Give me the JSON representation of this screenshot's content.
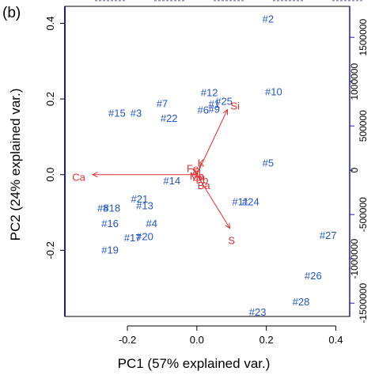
{
  "panel_label": "(b)",
  "chart_data": {
    "type": "scatter",
    "subtype": "pca-biplot",
    "xlabel": "PC1 (57% explained var.)",
    "ylabel": "PC2 (24% explained var.)",
    "xlim": [
      -0.38,
      0.44
    ],
    "ylim": [
      -0.375,
      0.445
    ],
    "x_ticks": [
      -0.2,
      0.0,
      0.2,
      0.4
    ],
    "x_tick_labels": [
      "-0.2",
      "0.0",
      "0.2",
      "0.4"
    ],
    "y_ticks": [
      -0.2,
      0.0,
      0.2,
      0.4
    ],
    "y_tick_labels": [
      "-0.2",
      "0.0",
      "0.2",
      "0.4"
    ],
    "secondary_y_ticks": [
      -1500000,
      -500000,
      500000,
      1500000
    ],
    "secondary_y_tick_labels": [
      "-1500000",
      "-500000",
      "500000",
      "1500000"
    ],
    "secondary_y_minor_ticks": [
      -1000000,
      0,
      1000000
    ],
    "secondary_y_minor_tick_labels": [
      "-1000000",
      "0",
      "1000000"
    ],
    "secondary_ylim": [
      -1650000,
      1850000
    ],
    "grid": false,
    "colors": {
      "observations": "#2255cc",
      "variables": "#e03030",
      "axis": "#1a1aa0",
      "frame": "#000000"
    },
    "observations": [
      {
        "label": "#2",
        "x": 0.205,
        "y": 0.41
      },
      {
        "label": "#10",
        "x": 0.221,
        "y": 0.218
      },
      {
        "label": "#12",
        "x": 0.036,
        "y": 0.216
      },
      {
        "label": "#25",
        "x": 0.078,
        "y": 0.193
      },
      {
        "label": "#1",
        "x": 0.05,
        "y": 0.186
      },
      {
        "label": "#9",
        "x": 0.05,
        "y": 0.172
      },
      {
        "label": "#6",
        "x": 0.018,
        "y": 0.17
      },
      {
        "label": "#7",
        "x": -0.1,
        "y": 0.187
      },
      {
        "label": "#15",
        "x": -0.23,
        "y": 0.162
      },
      {
        "label": "#3",
        "x": -0.175,
        "y": 0.162
      },
      {
        "label": "#22",
        "x": -0.08,
        "y": 0.148
      },
      {
        "label": "#5",
        "x": 0.205,
        "y": 0.03
      },
      {
        "label": "#14",
        "x": -0.072,
        "y": -0.017
      },
      {
        "label": "#21",
        "x": -0.165,
        "y": -0.065
      },
      {
        "label": "#13",
        "x": -0.15,
        "y": -0.083
      },
      {
        "label": "#18",
        "x": -0.245,
        "y": -0.089
      },
      {
        "label": "#8",
        "x": -0.27,
        "y": -0.089
      },
      {
        "label": "#24",
        "x": 0.155,
        "y": -0.073
      },
      {
        "label": "#11",
        "x": 0.125,
        "y": -0.073
      },
      {
        "label": "#16",
        "x": -0.25,
        "y": -0.13
      },
      {
        "label": "#4",
        "x": -0.13,
        "y": -0.13
      },
      {
        "label": "#17",
        "x": -0.185,
        "y": -0.168
      },
      {
        "label": "#20",
        "x": -0.15,
        "y": -0.165
      },
      {
        "label": "#19",
        "x": -0.25,
        "y": -0.2
      },
      {
        "label": "#27",
        "x": 0.378,
        "y": -0.162
      },
      {
        "label": "#26",
        "x": 0.335,
        "y": -0.268
      },
      {
        "label": "#28",
        "x": 0.3,
        "y": -0.337
      },
      {
        "label": "#23",
        "x": 0.175,
        "y": -0.365
      }
    ],
    "variables": [
      {
        "label": "Ca",
        "x": -0.3,
        "y": 0.0,
        "arrow": true,
        "label_x": -0.34,
        "label_y": -0.008
      },
      {
        "label": "Si",
        "x": 0.088,
        "y": 0.172,
        "arrow": true,
        "label_x": 0.11,
        "label_y": 0.18
      },
      {
        "label": "S",
        "x": 0.095,
        "y": -0.142,
        "arrow": true,
        "label_x": 0.1,
        "label_y": -0.175
      },
      {
        "label": "K",
        "x": 0.012,
        "y": 0.03,
        "arrow": false,
        "label_x": 0.012,
        "label_y": 0.03
      },
      {
        "label": "Fe",
        "x": -0.012,
        "y": 0.015,
        "arrow": false,
        "label_x": -0.012,
        "label_y": 0.015
      },
      {
        "label": "Al",
        "x": -0.002,
        "y": 0.003,
        "arrow": false,
        "label_x": -0.002,
        "label_y": 0.003
      },
      {
        "label": "Zn",
        "x": 0.005,
        "y": -0.008,
        "arrow": false,
        "label_x": 0.005,
        "label_y": -0.008
      },
      {
        "label": "Mn",
        "x": 0.0,
        "y": -0.005,
        "arrow": false,
        "label_x": 0.0,
        "label_y": -0.005
      },
      {
        "label": "Pb",
        "x": 0.015,
        "y": -0.015,
        "arrow": false,
        "label_x": 0.015,
        "label_y": -0.015
      },
      {
        "label": "Ba",
        "x": 0.02,
        "y": -0.03,
        "arrow": false,
        "label_x": 0.02,
        "label_y": -0.03
      }
    ]
  }
}
